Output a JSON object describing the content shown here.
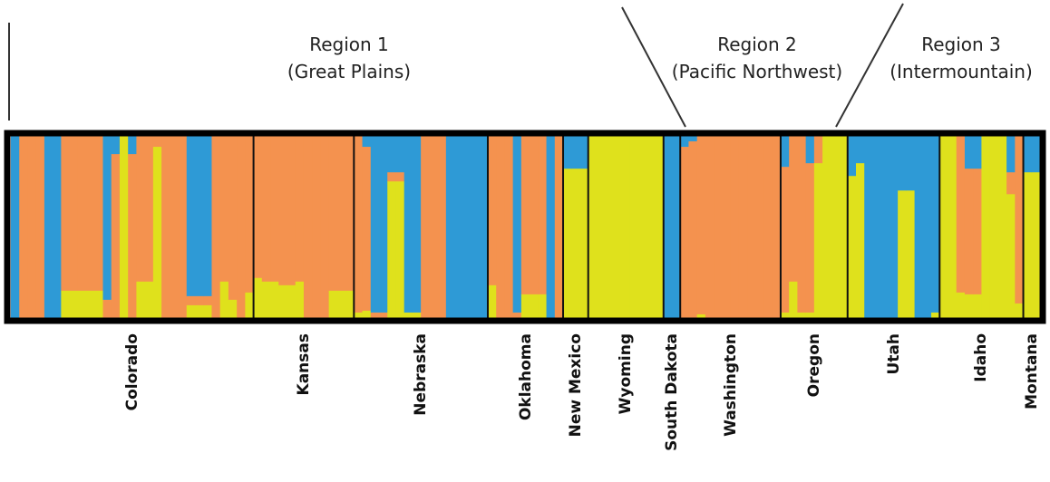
{
  "colors": {
    "cluster_1": "#2e9ad6",
    "cluster_2": "#f4924f",
    "cluster_3": "#dfe11c",
    "frame": "#000000"
  },
  "regions": [
    {
      "line1": "Region 1",
      "line2": "(Great Plains)"
    },
    {
      "line1": "Region 2",
      "line2": "(Pacific Northwest)"
    },
    {
      "line1": "Region 3",
      "line2": "(Intermountain)"
    }
  ],
  "chart_data": {
    "type": "bar",
    "stacked": true,
    "ylim": [
      0,
      1
    ],
    "series_order": [
      "cluster_1",
      "cluster_2",
      "cluster_3"
    ],
    "groups": [
      {
        "name": "Colorado",
        "region": 1,
        "individuals": [
          [
            1.0,
            0,
            0
          ],
          [
            0,
            1,
            0
          ],
          [
            0,
            1,
            0
          ],
          [
            0,
            1,
            0
          ],
          [
            1,
            0,
            0
          ],
          [
            1,
            0,
            0
          ],
          [
            0,
            0.85,
            0.15
          ],
          [
            0,
            0.85,
            0.15
          ],
          [
            0,
            0.85,
            0.15
          ],
          [
            0,
            0.85,
            0.15
          ],
          [
            0,
            0.85,
            0.15
          ],
          [
            0.9,
            0.1,
            0
          ],
          [
            0.1,
            0.9,
            0
          ],
          [
            0,
            0,
            1
          ],
          [
            0.1,
            0.9,
            0
          ],
          [
            0,
            0.8,
            0.2
          ],
          [
            0,
            0.8,
            0.2
          ],
          [
            0,
            0.06,
            0.94
          ],
          [
            0,
            1,
            0
          ],
          [
            0,
            1,
            0
          ],
          [
            0,
            1,
            0
          ],
          [
            0.88,
            0.05,
            0.07
          ],
          [
            0.88,
            0.05,
            0.07
          ],
          [
            0.88,
            0.05,
            0.07
          ],
          [
            0,
            1,
            0
          ],
          [
            0,
            0.8,
            0.2
          ],
          [
            0,
            0.9,
            0.1
          ],
          [
            0,
            1,
            0
          ],
          [
            0,
            0.86,
            0.14
          ]
        ]
      },
      {
        "name": "Kansas",
        "region": 1,
        "individuals": [
          [
            0,
            0.78,
            0.22
          ],
          [
            0,
            0.8,
            0.2
          ],
          [
            0,
            0.8,
            0.2
          ],
          [
            0,
            0.82,
            0.18
          ],
          [
            0,
            0.82,
            0.18
          ],
          [
            0,
            0.8,
            0.2
          ],
          [
            0,
            1,
            0
          ],
          [
            0,
            1,
            0
          ],
          [
            0,
            1,
            0
          ],
          [
            0,
            0.85,
            0.15
          ],
          [
            0,
            0.85,
            0.15
          ],
          [
            0,
            0.85,
            0.15
          ]
        ]
      },
      {
        "name": "Nebraska",
        "region": 1,
        "individuals": [
          [
            0,
            0.97,
            0.03
          ],
          [
            0.06,
            0.9,
            0.04
          ],
          [
            0.97,
            0.03,
            0
          ],
          [
            0.97,
            0.03,
            0
          ],
          [
            0.2,
            0.05,
            0.75
          ],
          [
            0.2,
            0.05,
            0.75
          ],
          [
            0.97,
            0,
            0.03
          ],
          [
            0.97,
            0,
            0.03
          ],
          [
            0,
            1,
            0
          ],
          [
            0,
            1,
            0
          ],
          [
            0,
            1,
            0
          ],
          [
            1,
            0,
            0
          ],
          [
            1,
            0,
            0
          ],
          [
            1,
            0,
            0
          ],
          [
            1,
            0,
            0
          ],
          [
            1,
            0,
            0
          ]
        ]
      },
      {
        "name": "Oklahoma",
        "region": 1,
        "individuals": [
          [
            0,
            0.82,
            0.18
          ],
          [
            0,
            1,
            0
          ],
          [
            0,
            1,
            0
          ],
          [
            0.97,
            0.03,
            0
          ],
          [
            0,
            0.87,
            0.13
          ],
          [
            0,
            0.87,
            0.13
          ],
          [
            0,
            0.87,
            0.13
          ],
          [
            1,
            0,
            0
          ],
          [
            0,
            1,
            0
          ]
        ]
      },
      {
        "name": "New Mexico",
        "region": 1,
        "individuals": [
          [
            0.18,
            0,
            0.82
          ],
          [
            0.18,
            0,
            0.82
          ],
          [
            0.18,
            0,
            0.82
          ]
        ]
      },
      {
        "name": "Wyoming",
        "region": 1,
        "individuals": [
          [
            0,
            0,
            1
          ],
          [
            0,
            0,
            1
          ],
          [
            0,
            0,
            1
          ],
          [
            0,
            0,
            1
          ],
          [
            0,
            0,
            1
          ],
          [
            0,
            0,
            1
          ],
          [
            0,
            0,
            1
          ],
          [
            0,
            0,
            1
          ],
          [
            0,
            0,
            1
          ]
        ]
      },
      {
        "name": "South Dakota",
        "region": 1,
        "individuals": [
          [
            1,
            0,
            0
          ],
          [
            1,
            0,
            0
          ]
        ]
      },
      {
        "name": "Washington",
        "region": 2,
        "individuals": [
          [
            0.06,
            0.94,
            0
          ],
          [
            0.03,
            0.97,
            0
          ],
          [
            0,
            0.98,
            0.02
          ],
          [
            0,
            1,
            0
          ],
          [
            0,
            1,
            0
          ],
          [
            0,
            1,
            0
          ],
          [
            0,
            1,
            0
          ],
          [
            0,
            1,
            0
          ],
          [
            0,
            1,
            0
          ],
          [
            0,
            1,
            0
          ],
          [
            0,
            1,
            0
          ],
          [
            0,
            1,
            0
          ]
        ]
      },
      {
        "name": "Oregon",
        "region": 2,
        "individuals": [
          [
            0.17,
            0.8,
            0.03
          ],
          [
            0,
            0.8,
            0.2
          ],
          [
            0,
            0.97,
            0.03
          ],
          [
            0.15,
            0.82,
            0.03
          ],
          [
            0,
            0.15,
            0.85
          ],
          [
            0,
            0,
            1
          ],
          [
            0,
            0,
            1
          ],
          [
            0,
            0,
            1
          ]
        ]
      },
      {
        "name": "Utah",
        "region": 3,
        "individuals": [
          [
            0.22,
            0,
            0.78
          ],
          [
            0.15,
            0,
            0.85
          ],
          [
            1,
            0,
            0
          ],
          [
            1,
            0,
            0
          ],
          [
            1,
            0,
            0
          ],
          [
            1,
            0,
            0
          ],
          [
            0.3,
            0,
            0.7
          ],
          [
            0.3,
            0,
            0.7
          ],
          [
            1,
            0,
            0
          ],
          [
            1,
            0,
            0
          ],
          [
            0.97,
            0,
            0.03
          ]
        ]
      },
      {
        "name": "Idaho",
        "region": 3,
        "individuals": [
          [
            0,
            0,
            1
          ],
          [
            0,
            0,
            1
          ],
          [
            0,
            0.86,
            0.14
          ],
          [
            0.18,
            0.69,
            0.13
          ],
          [
            0.18,
            0.69,
            0.13
          ],
          [
            0,
            0,
            1
          ],
          [
            0,
            0,
            1
          ],
          [
            0,
            0,
            1
          ],
          [
            0.2,
            0.12,
            0.68
          ],
          [
            0,
            0.92,
            0.08
          ]
        ]
      },
      {
        "name": "Montana",
        "region": 3,
        "individuals": [
          [
            0.2,
            0,
            0.8
          ],
          [
            0.2,
            0,
            0.8
          ]
        ]
      }
    ]
  }
}
